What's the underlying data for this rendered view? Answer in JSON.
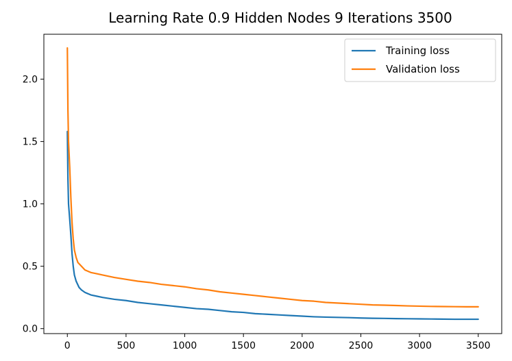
{
  "chart_data": {
    "type": "line",
    "title": "Learning Rate 0.9 Hidden Nodes 9 Iterations 3500",
    "xlabel": "",
    "ylabel": "",
    "xlim": [
      -200,
      3700
    ],
    "ylim": [
      -0.04,
      2.36
    ],
    "xticks": [
      0,
      500,
      1000,
      1500,
      2000,
      2500,
      3000,
      3500
    ],
    "yticks": [
      0.0,
      0.5,
      1.0,
      1.5,
      2.0
    ],
    "xtick_labels": [
      "0",
      "500",
      "1000",
      "1500",
      "2000",
      "2500",
      "3000",
      "3500"
    ],
    "ytick_labels": [
      "0.0",
      "0.5",
      "1.0",
      "1.5",
      "2.0"
    ],
    "grid": false,
    "legend_position": "top-right",
    "series": [
      {
        "name": "Training loss",
        "color": "#1f77b4",
        "x": [
          0,
          5,
          10,
          20,
          30,
          40,
          50,
          60,
          75,
          90,
          100,
          120,
          150,
          200,
          250,
          300,
          400,
          500,
          600,
          700,
          800,
          900,
          1000,
          1100,
          1200,
          1300,
          1400,
          1500,
          1600,
          1700,
          1800,
          1900,
          2000,
          2100,
          2200,
          2300,
          2400,
          2500,
          2600,
          2700,
          2800,
          2900,
          3000,
          3100,
          3200,
          3300,
          3400,
          3500
        ],
        "y": [
          1.58,
          1.2,
          1.0,
          0.88,
          0.75,
          0.6,
          0.5,
          0.43,
          0.38,
          0.35,
          0.33,
          0.31,
          0.29,
          0.27,
          0.26,
          0.25,
          0.235,
          0.225,
          0.21,
          0.2,
          0.19,
          0.18,
          0.17,
          0.16,
          0.155,
          0.145,
          0.135,
          0.13,
          0.12,
          0.115,
          0.11,
          0.105,
          0.1,
          0.095,
          0.092,
          0.09,
          0.088,
          0.085,
          0.083,
          0.082,
          0.08,
          0.079,
          0.078,
          0.077,
          0.076,
          0.075,
          0.075,
          0.075
        ]
      },
      {
        "name": "Validation loss",
        "color": "#ff7f0e",
        "x": [
          0,
          5,
          10,
          20,
          30,
          40,
          50,
          60,
          75,
          90,
          100,
          120,
          150,
          200,
          250,
          300,
          400,
          500,
          600,
          700,
          800,
          900,
          1000,
          1100,
          1200,
          1300,
          1400,
          1500,
          1600,
          1700,
          1800,
          1900,
          2000,
          2100,
          2200,
          2300,
          2400,
          2500,
          2600,
          2700,
          2800,
          2900,
          3000,
          3100,
          3200,
          3300,
          3400,
          3500
        ],
        "y": [
          2.25,
          1.75,
          1.5,
          1.3,
          1.05,
          0.85,
          0.72,
          0.63,
          0.57,
          0.53,
          0.52,
          0.5,
          0.47,
          0.45,
          0.44,
          0.43,
          0.41,
          0.395,
          0.38,
          0.37,
          0.355,
          0.345,
          0.335,
          0.32,
          0.31,
          0.295,
          0.285,
          0.275,
          0.265,
          0.255,
          0.245,
          0.235,
          0.225,
          0.22,
          0.21,
          0.205,
          0.2,
          0.195,
          0.19,
          0.188,
          0.185,
          0.182,
          0.18,
          0.178,
          0.177,
          0.176,
          0.175,
          0.175
        ]
      }
    ]
  }
}
